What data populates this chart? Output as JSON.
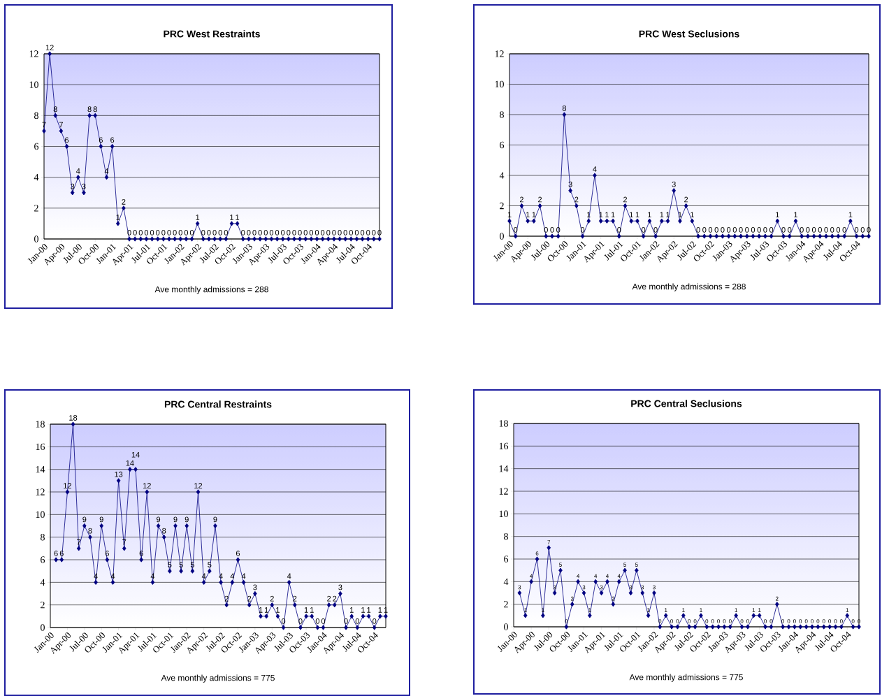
{
  "chart_data": [
    {
      "type": "line",
      "title": "PRC West Restraints",
      "color": "#000080",
      "marker": "diamond",
      "line_style": "solid",
      "grid": "y",
      "data_labels": true,
      "categories": [
        "Jan-00",
        null,
        null,
        "Apr-00",
        null,
        null,
        "Jul-00",
        null,
        null,
        "Oct-00",
        null,
        null,
        "Jan-01",
        null,
        null,
        "Apr-01",
        null,
        null,
        "Jul-01",
        null,
        null,
        "Oct-01",
        null,
        null,
        "Jan-02",
        null,
        null,
        "Apr-02",
        null,
        null,
        "Jul-02",
        null,
        null,
        "Oct-02",
        null,
        null,
        "Jan-03",
        null,
        null,
        "Apr-03",
        null,
        null,
        "Jul-03",
        null,
        null,
        "Oct-03",
        null,
        null,
        "Jan-04",
        null,
        null,
        "Apr-04",
        null,
        null,
        "Jul-04",
        null,
        null,
        "Oct-04",
        null,
        null
      ],
      "values": [
        7,
        12,
        8,
        7,
        6,
        3,
        4,
        3,
        8,
        8,
        6,
        4,
        6,
        1,
        2,
        0,
        0,
        0,
        0,
        0,
        0,
        0,
        0,
        0,
        0,
        0,
        0,
        1,
        0,
        0,
        0,
        0,
        0,
        1,
        1,
        0,
        0,
        0,
        0,
        0,
        0,
        0,
        0,
        0,
        0,
        0,
        0,
        0,
        0,
        0,
        0,
        0,
        0,
        0,
        0,
        0,
        0,
        0,
        0,
        0
      ],
      "ylim": [
        0,
        12
      ],
      "yticks": [
        0,
        2,
        4,
        6,
        8,
        10,
        12
      ],
      "annotations": [
        "Ave monthly admissions = 288"
      ]
    },
    {
      "type": "line",
      "title": "PRC West Seclusions",
      "color": "#000080",
      "marker": "diamond",
      "line_style": "solid",
      "grid": "y",
      "data_labels": true,
      "categories": [
        "Jan-00",
        null,
        null,
        "Apr-00",
        null,
        null,
        "Jul-00",
        null,
        null,
        "Oct-00",
        null,
        null,
        "Jan-01",
        null,
        null,
        "Apr-01",
        null,
        null,
        "Jul-01",
        null,
        null,
        "Oct-01",
        null,
        null,
        "Jan-02",
        null,
        null,
        "Apr-02",
        null,
        null,
        "Jul-02",
        null,
        null,
        "Oct-02",
        null,
        null,
        "Jan-03",
        null,
        null,
        "Apr-03",
        null,
        null,
        "Jul-03",
        null,
        null,
        "Oct-03",
        null,
        null,
        "Jan-04",
        null,
        null,
        "Apr-04",
        null,
        null,
        "Jul-04",
        null,
        null,
        "Oct-04",
        null,
        null
      ],
      "values": [
        1,
        0,
        2,
        1,
        1,
        2,
        0,
        0,
        0,
        8,
        3,
        2,
        0,
        1,
        4,
        1,
        1,
        1,
        0,
        2,
        1,
        1,
        0,
        1,
        0,
        1,
        1,
        3,
        1,
        2,
        1,
        0,
        0,
        0,
        0,
        0,
        0,
        0,
        0,
        0,
        0,
        0,
        0,
        0,
        1,
        0,
        0,
        1,
        0,
        0,
        0,
        0,
        0,
        0,
        0,
        0,
        1,
        0,
        0,
        0
      ],
      "ylim": [
        0,
        12
      ],
      "yticks": [
        0,
        2,
        4,
        6,
        8,
        10,
        12
      ],
      "annotations": [
        "Ave monthly admissions = 288"
      ]
    },
    {
      "type": "line",
      "title": "PRC Central Restraints",
      "color": "#000080",
      "marker": "diamond",
      "line_style": "solid",
      "grid": "y",
      "data_labels": true,
      "categories": [
        "Jan-00",
        null,
        null,
        "Apr-00",
        null,
        null,
        "Jul-00",
        null,
        null,
        "Oct-00",
        null,
        null,
        "Jan-01",
        null,
        null,
        "Apr-01",
        null,
        null,
        "Jul-01",
        null,
        null,
        "Oct-01",
        null,
        null,
        "Jan-02",
        null,
        null,
        "Apr-02",
        null,
        null,
        "Jul-02",
        null,
        null,
        "Oct-02",
        null,
        null,
        "Jan-03",
        null,
        null,
        "Apr-03",
        null,
        null,
        "Jul-03",
        null,
        null,
        "Oct-03",
        null,
        null,
        "Jan-04",
        null,
        null,
        "Apr-04",
        null,
        null,
        "Jul-04",
        null,
        null,
        "Oct-04",
        null,
        null
      ],
      "values": [
        null,
        6,
        6,
        12,
        18,
        7,
        9,
        8,
        4,
        9,
        6,
        4,
        13,
        7,
        14,
        14,
        6,
        12,
        4,
        9,
        8,
        5,
        9,
        5,
        9,
        5,
        12,
        4,
        5,
        9,
        4,
        2,
        4,
        6,
        4,
        2,
        3,
        1,
        1,
        2,
        1,
        0,
        4,
        2,
        0,
        1,
        1,
        0,
        0,
        2,
        2,
        3,
        0,
        1,
        0,
        1,
        1,
        0,
        1,
        1
      ],
      "ylim": [
        0,
        18
      ],
      "yticks": [
        0,
        2,
        4,
        6,
        8,
        10,
        12,
        14,
        16,
        18
      ],
      "annotations": [
        "Ave monthly admissions = 775"
      ]
    },
    {
      "type": "line",
      "title": "PRC Central Seclusions",
      "color": "#000080",
      "marker": "diamond",
      "line_style": "solid",
      "grid": "y",
      "data_labels": true,
      "categories": [
        "Jan-00",
        null,
        null,
        "Apr-00",
        null,
        null,
        "Jul-00",
        null,
        null,
        "Oct-00",
        null,
        null,
        "Jan-01",
        null,
        null,
        "Apr-01",
        null,
        null,
        "Jul-01",
        null,
        null,
        "Oct-01",
        null,
        null,
        "Jan-02",
        null,
        null,
        "Apr-02",
        null,
        null,
        "Jul-02",
        null,
        null,
        "Oct-02",
        null,
        null,
        "Jan-03",
        null,
        null,
        "Apr-03",
        null,
        null,
        "Jul-03",
        null,
        null,
        "Oct-03",
        null,
        null,
        "Jan-04",
        null,
        null,
        "Apr-04",
        null,
        null,
        "Jul-04",
        null,
        null,
        "Oct-04",
        null,
        null
      ],
      "values": [
        null,
        3,
        1,
        4,
        6,
        1,
        7,
        3,
        5,
        0,
        2,
        4,
        3,
        1,
        4,
        3,
        4,
        2,
        4,
        5,
        3,
        5,
        3,
        1,
        3,
        0,
        1,
        0,
        0,
        1,
        0,
        0,
        1,
        0,
        0,
        0,
        0,
        0,
        1,
        0,
        0,
        1,
        1,
        0,
        0,
        2,
        0,
        0,
        0,
        0,
        0,
        0,
        0,
        0,
        0,
        0,
        0,
        1,
        0,
        0
      ],
      "ylim": [
        0,
        18
      ],
      "yticks": [
        0,
        2,
        4,
        6,
        8,
        10,
        12,
        14,
        16,
        18
      ],
      "annotations": [
        "Ave monthly admissions = 775"
      ]
    }
  ]
}
